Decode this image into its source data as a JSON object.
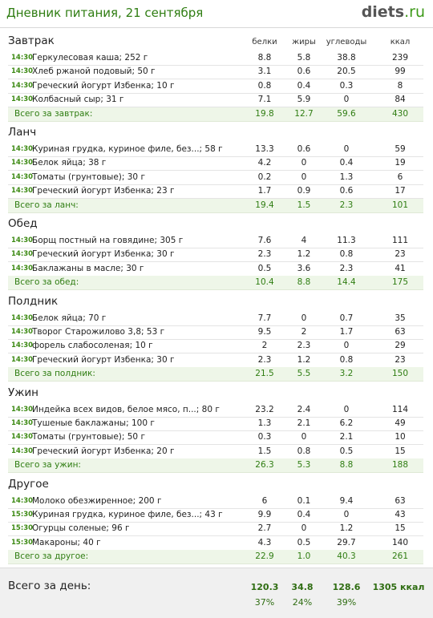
{
  "header": {
    "title": "Дневник питания, 21 сентября",
    "logo": {
      "main": "diets",
      "suffix": ".ru"
    }
  },
  "columns": [
    "белки",
    "жиры",
    "углеводы",
    "ккал"
  ],
  "meals": [
    {
      "title": "Завтрак",
      "items": [
        {
          "time": "14:30",
          "name": "Геркулесовая каша; 252 г",
          "values": [
            "8.8",
            "5.8",
            "38.8",
            "239"
          ]
        },
        {
          "time": "14:30",
          "name": "Хлеб ржаной подовый; 50 г",
          "values": [
            "3.1",
            "0.6",
            "20.5",
            "99"
          ]
        },
        {
          "time": "14:30",
          "name": "Греческий йогурт Избенка; 10 г",
          "values": [
            "0.8",
            "0.4",
            "0.3",
            "8"
          ]
        },
        {
          "time": "14:30",
          "name": "Колбасный сыр; 31 г",
          "values": [
            "7.1",
            "5.9",
            "0",
            "84"
          ]
        }
      ],
      "total": {
        "label": "Всего за завтрак:",
        "values": [
          "19.8",
          "12.7",
          "59.6",
          "430"
        ]
      }
    },
    {
      "title": "Ланч",
      "items": [
        {
          "time": "14:30",
          "name": "Куриная грудка, куриное филе, без...; 58 г",
          "values": [
            "13.3",
            "0.6",
            "0",
            "59"
          ]
        },
        {
          "time": "14:30",
          "name": "Белок яйца; 38 г",
          "values": [
            "4.2",
            "0",
            "0.4",
            "19"
          ]
        },
        {
          "time": "14:30",
          "name": "Томаты (грунтовые); 30 г",
          "values": [
            "0.2",
            "0",
            "1.3",
            "6"
          ]
        },
        {
          "time": "14:30",
          "name": "Греческий йогурт Избенка; 23 г",
          "values": [
            "1.7",
            "0.9",
            "0.6",
            "17"
          ]
        }
      ],
      "total": {
        "label": "Всего за ланч:",
        "values": [
          "19.4",
          "1.5",
          "2.3",
          "101"
        ]
      }
    },
    {
      "title": "Обед",
      "items": [
        {
          "time": "14:30",
          "name": "Борщ постный на говядине; 305 г",
          "values": [
            "7.6",
            "4",
            "11.3",
            "111"
          ]
        },
        {
          "time": "14:30",
          "name": "Греческий йогурт Избенка; 30 г",
          "values": [
            "2.3",
            "1.2",
            "0.8",
            "23"
          ]
        },
        {
          "time": "14:30",
          "name": "Баклажаны в масле; 30 г",
          "values": [
            "0.5",
            "3.6",
            "2.3",
            "41"
          ]
        }
      ],
      "total": {
        "label": "Всего за обед:",
        "values": [
          "10.4",
          "8.8",
          "14.4",
          "175"
        ]
      }
    },
    {
      "title": "Полдник",
      "items": [
        {
          "time": "14:30",
          "name": "Белок яйца; 70 г",
          "values": [
            "7.7",
            "0",
            "0.7",
            "35"
          ]
        },
        {
          "time": "14:30",
          "name": "Творог Старожилово 3,8; 53 г",
          "values": [
            "9.5",
            "2",
            "1.7",
            "63"
          ]
        },
        {
          "time": "14:30",
          "name": "форель слабосоленая; 10 г",
          "values": [
            "2",
            "2.3",
            "0",
            "29"
          ]
        },
        {
          "time": "14:30",
          "name": "Греческий йогурт Избенка; 30 г",
          "values": [
            "2.3",
            "1.2",
            "0.8",
            "23"
          ]
        }
      ],
      "total": {
        "label": "Всего за полдник:",
        "values": [
          "21.5",
          "5.5",
          "3.2",
          "150"
        ]
      }
    },
    {
      "title": "Ужин",
      "items": [
        {
          "time": "14:30",
          "name": "Индейка всех видов, белое мясо, п...; 80 г",
          "values": [
            "23.2",
            "2.4",
            "0",
            "114"
          ]
        },
        {
          "time": "14:30",
          "name": "Тушеные баклажаны; 100 г",
          "values": [
            "1.3",
            "2.1",
            "6.2",
            "49"
          ]
        },
        {
          "time": "14:30",
          "name": "Томаты (грунтовые); 50 г",
          "values": [
            "0.3",
            "0",
            "2.1",
            "10"
          ]
        },
        {
          "time": "14:30",
          "name": "Греческий йогурт Избенка; 20 г",
          "values": [
            "1.5",
            "0.8",
            "0.5",
            "15"
          ]
        }
      ],
      "total": {
        "label": "Всего за ужин:",
        "values": [
          "26.3",
          "5.3",
          "8.8",
          "188"
        ]
      }
    },
    {
      "title": "Другое",
      "items": [
        {
          "time": "14:30",
          "name": "Молоко обезжиренное; 200 г",
          "values": [
            "6",
            "0.1",
            "9.4",
            "63"
          ]
        },
        {
          "time": "15:30",
          "name": "Куриная грудка, куриное филе, без...; 43 г",
          "values": [
            "9.9",
            "0.4",
            "0",
            "43"
          ]
        },
        {
          "time": "15:30",
          "name": "Огурцы соленые; 96 г",
          "values": [
            "2.7",
            "0",
            "1.2",
            "15"
          ]
        },
        {
          "time": "15:30",
          "name": "Макароны; 40 г",
          "values": [
            "4.3",
            "0.5",
            "29.7",
            "140"
          ]
        }
      ],
      "total": {
        "label": "Всего за другое:",
        "values": [
          "22.9",
          "1.0",
          "40.3",
          "261"
        ]
      }
    }
  ],
  "day_total": {
    "label": "Всего за день:",
    "values": [
      "120.3",
      "34.8",
      "128.6",
      "1305 ккал"
    ],
    "percents": [
      "37%",
      "24%",
      "39%"
    ]
  }
}
